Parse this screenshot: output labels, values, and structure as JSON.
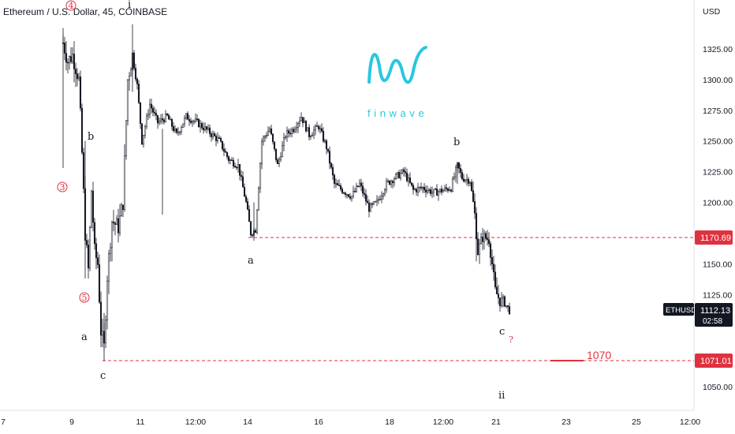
{
  "header": {
    "title": "Ethereum / U.S. Dollar, 45, COINBASE"
  },
  "logo": {
    "text": "finwave",
    "color": "#28c7e0"
  },
  "price_axis": {
    "currency": "USD",
    "ticks": [
      "1325.00",
      "1300.00",
      "1275.00",
      "1250.00",
      "1225.00",
      "1200.00",
      "1175.00",
      "1150.00",
      "1125.00",
      "1075.00",
      "1050.00"
    ]
  },
  "time_axis": {
    "ticks": [
      "7",
      "9",
      "11",
      "12:00",
      "14",
      "16",
      "18",
      "12:00",
      "21",
      "23",
      "25",
      "12:00"
    ]
  },
  "price_tags": {
    "upper_level": "1170.69",
    "symbol": "ETHUSD",
    "last_price": "1112.13",
    "countdown": "02:58",
    "lower_level": "1071.01"
  },
  "annotations": {
    "target": "1070",
    "question": "?",
    "wave_labels": [
      "4",
      "i",
      "b",
      "3",
      "5",
      "a",
      "c",
      "a",
      "b",
      "c",
      "ii"
    ]
  },
  "colors": {
    "level_line": "#e0313f",
    "candles": "#131722",
    "accent": "#28c7e0"
  },
  "chart_data": {
    "type": "candlestick",
    "symbol": "ETHUSD",
    "interval": "45",
    "exchange": "COINBASE",
    "ylim": [
      1030,
      1345
    ],
    "horizontal_levels": [
      1170.69,
      1071.01
    ],
    "approx_path": [
      {
        "x": "9",
        "close": 1330
      },
      {
        "x": "9",
        "close": 1300
      },
      {
        "x": "9",
        "close": 1225
      },
      {
        "x": "9",
        "close": 1165
      },
      {
        "x": "10",
        "close": 1095
      },
      {
        "x": "10",
        "close": 1080
      },
      {
        "x": "10",
        "close": 1180
      },
      {
        "x": "11",
        "close": 1310
      },
      {
        "x": "11",
        "close": 1250
      },
      {
        "x": "12:00",
        "close": 1270
      },
      {
        "x": "13",
        "close": 1235
      },
      {
        "x": "14",
        "close": 1175
      },
      {
        "x": "15",
        "close": 1250
      },
      {
        "x": "16",
        "close": 1255
      },
      {
        "x": "17",
        "close": 1210
      },
      {
        "x": "18",
        "close": 1195
      },
      {
        "x": "19",
        "close": 1215
      },
      {
        "x": "20",
        "close": 1210
      },
      {
        "x": "20",
        "close": 1230
      },
      {
        "x": "20",
        "close": 1220
      },
      {
        "x": "21",
        "close": 1170
      },
      {
        "x": "21",
        "close": 1125
      },
      {
        "x": "21",
        "close": 1112
      }
    ]
  }
}
